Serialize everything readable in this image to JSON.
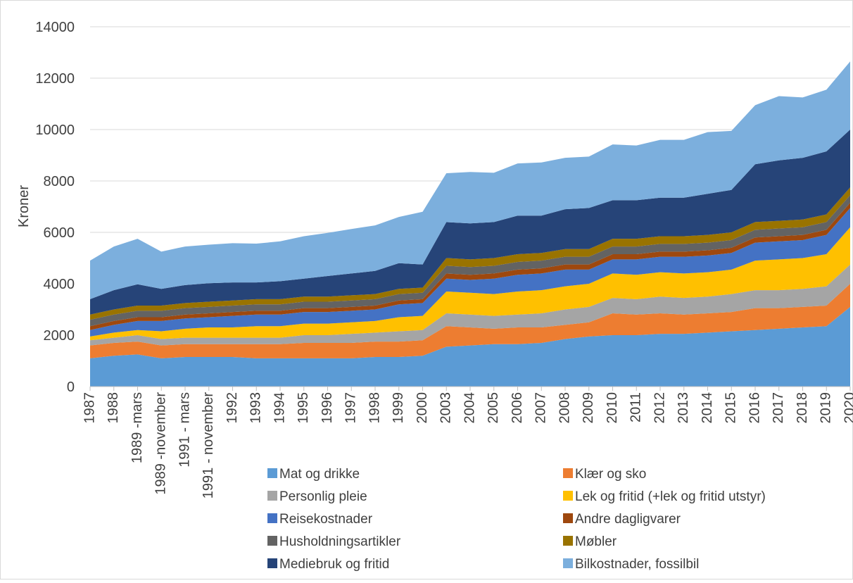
{
  "chart_data": {
    "type": "stacked-area",
    "y_label": "Kroner",
    "categories": [
      "1987",
      "1988",
      "1989 -mars",
      "1989 -november",
      "1991 - mars",
      "1991 - november",
      "1992",
      "1993",
      "1994",
      "1995",
      "1996",
      "1997",
      "1998",
      "1999",
      "2000",
      "2003",
      "2004",
      "2005",
      "2006",
      "2007",
      "2008",
      "2009",
      "2010",
      "2011",
      "2012",
      "2013",
      "2014",
      "2015",
      "2016",
      "2017",
      "2018",
      "2019",
      "2020"
    ],
    "ylim": [
      0,
      14000
    ],
    "yticks": [
      0,
      2000,
      4000,
      6000,
      8000,
      10000,
      12000,
      14000
    ],
    "grid": true,
    "series": [
      {
        "name": "Mat og drikke",
        "color": "#5b9bd5",
        "values": [
          1100,
          1200,
          1250,
          1100,
          1150,
          1150,
          1150,
          1100,
          1100,
          1100,
          1100,
          1100,
          1150,
          1150,
          1200,
          1550,
          1600,
          1650,
          1650,
          1700,
          1850,
          1950,
          2000,
          2000,
          2050,
          2050,
          2100,
          2150,
          2200,
          2250,
          2300,
          2350,
          3100
        ]
      },
      {
        "name": "Klær og sko",
        "color": "#ed7d31",
        "values": [
          500,
          500,
          500,
          500,
          500,
          500,
          500,
          550,
          550,
          600,
          600,
          600,
          600,
          600,
          600,
          800,
          700,
          600,
          650,
          600,
          550,
          550,
          850,
          800,
          800,
          750,
          750,
          750,
          850,
          800,
          800,
          800,
          900
        ]
      },
      {
        "name": "Personlig pleie",
        "color": "#a5a5a5",
        "values": [
          200,
          200,
          250,
          250,
          250,
          250,
          250,
          250,
          250,
          300,
          300,
          350,
          350,
          400,
          400,
          500,
          500,
          500,
          500,
          550,
          600,
          600,
          600,
          600,
          650,
          650,
          650,
          700,
          700,
          700,
          700,
          750,
          750
        ]
      },
      {
        "name": "Lek og fritid (+lek og fritid utstyr)",
        "color": "#ffc000",
        "values": [
          150,
          200,
          200,
          300,
          350,
          400,
          400,
          450,
          450,
          450,
          450,
          450,
          450,
          550,
          550,
          850,
          850,
          850,
          900,
          900,
          900,
          900,
          950,
          950,
          950,
          950,
          950,
          950,
          1150,
          1200,
          1200,
          1250,
          1450
        ]
      },
      {
        "name": "Reisekostnader",
        "color": "#4472c4",
        "values": [
          250,
          300,
          350,
          400,
          400,
          400,
          450,
          450,
          450,
          450,
          450,
          450,
          450,
          500,
          500,
          500,
          500,
          600,
          650,
          650,
          650,
          550,
          550,
          600,
          600,
          650,
          650,
          650,
          700,
          700,
          700,
          750,
          750
        ]
      },
      {
        "name": "Andre dagligvarer",
        "color": "#9e480e",
        "values": [
          150,
          150,
          150,
          150,
          150,
          150,
          150,
          150,
          150,
          150,
          150,
          150,
          150,
          150,
          150,
          200,
          200,
          200,
          200,
          200,
          200,
          200,
          200,
          200,
          200,
          200,
          200,
          200,
          200,
          200,
          200,
          200,
          200
        ]
      },
      {
        "name": "Husholdningsartikler",
        "color": "#636363",
        "values": [
          250,
          250,
          250,
          250,
          250,
          250,
          250,
          250,
          250,
          250,
          250,
          250,
          250,
          250,
          250,
          300,
          300,
          300,
          300,
          300,
          300,
          300,
          300,
          300,
          300,
          300,
          300,
          300,
          300,
          300,
          300,
          300,
          300
        ]
      },
      {
        "name": "Møbler",
        "color": "#997300",
        "values": [
          200,
          200,
          200,
          200,
          200,
          200,
          200,
          200,
          200,
          200,
          200,
          200,
          200,
          200,
          200,
          300,
          300,
          300,
          300,
          300,
          300,
          300,
          300,
          300,
          300,
          300,
          300,
          300,
          300,
          300,
          300,
          300,
          300
        ]
      },
      {
        "name": "Mediebruk og fritid",
        "color": "#264478",
        "values": [
          600,
          750,
          830,
          650,
          700,
          720,
          700,
          650,
          700,
          700,
          800,
          850,
          900,
          1000,
          900,
          1400,
          1400,
          1400,
          1500,
          1450,
          1550,
          1600,
          1500,
          1500,
          1500,
          1500,
          1600,
          1650,
          2250,
          2350,
          2400,
          2450,
          2250
        ]
      },
      {
        "name": "Bilkostnader, fossilbil",
        "color": "#7cafdd",
        "values": [
          1500,
          1700,
          1770,
          1450,
          1500,
          1500,
          1530,
          1510,
          1550,
          1650,
          1680,
          1730,
          1770,
          1800,
          2050,
          1900,
          2000,
          1920,
          2030,
          2070,
          2000,
          2000,
          2170,
          2130,
          2250,
          2250,
          2400,
          2300,
          2300,
          2500,
          2350,
          2400,
          2650
        ]
      }
    ]
  }
}
